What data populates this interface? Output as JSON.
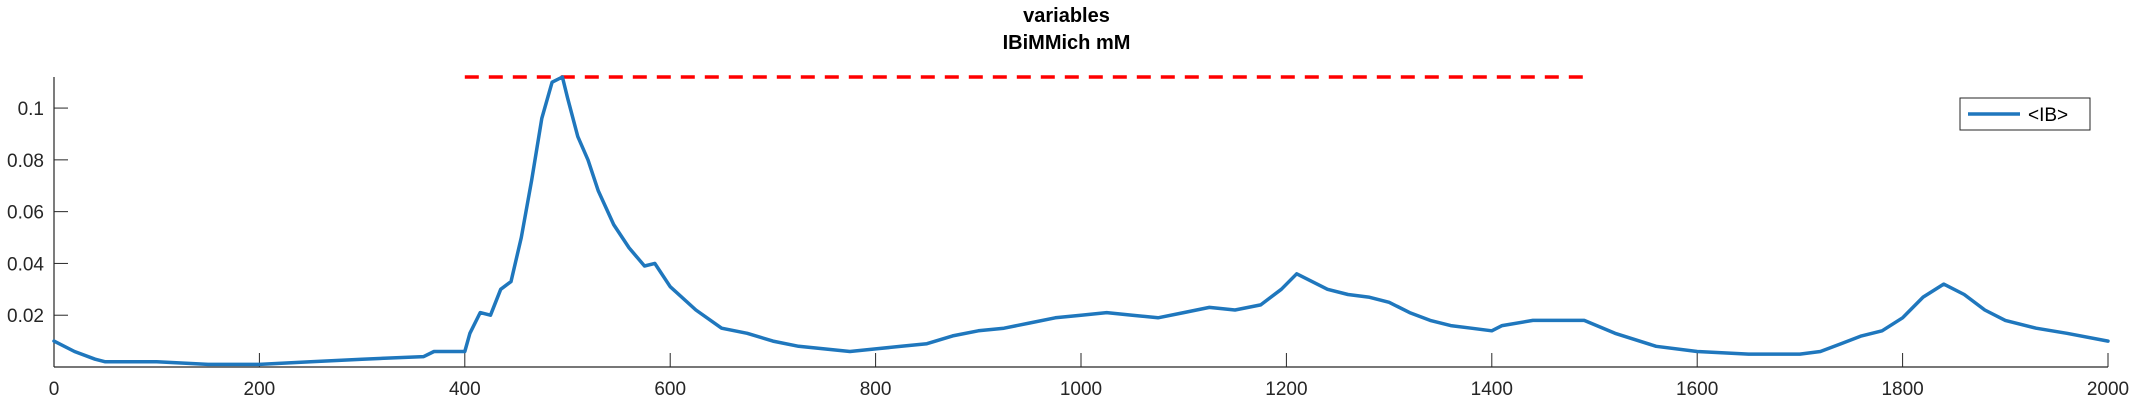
{
  "chart_data": {
    "type": "line",
    "title": [
      "variables",
      "IBiMMich mM"
    ],
    "xlabel": "",
    "ylabel": "",
    "xlim": [
      0,
      2000
    ],
    "ylim": [
      0,
      0.112
    ],
    "xticks": [
      0,
      200,
      400,
      600,
      800,
      1000,
      1200,
      1400,
      1600,
      1800,
      2000
    ],
    "yticks": [
      0.02,
      0.04,
      0.06,
      0.08,
      0.1
    ],
    "ytick_labels": [
      "0.02",
      "0.04",
      "0.06",
      "0.08",
      "0.1"
    ],
    "grid": false,
    "legend": {
      "position": "top-right",
      "entries": [
        "<IB>"
      ]
    },
    "colors": {
      "series": "#1f77bd",
      "reference": "#ff0000",
      "axis": "#262626"
    },
    "reference_line": {
      "style": "dashed",
      "y": 0.112,
      "x_range": [
        400,
        1490
      ]
    },
    "series": [
      {
        "name": "<IB>",
        "x": [
          0,
          20,
          40,
          50,
          100,
          150,
          200,
          250,
          300,
          360,
          370,
          400,
          405,
          415,
          425,
          435,
          445,
          455,
          465,
          475,
          485,
          495,
          500,
          510,
          520,
          530,
          545,
          560,
          575,
          585,
          600,
          625,
          650,
          675,
          700,
          725,
          750,
          775,
          800,
          825,
          850,
          875,
          900,
          925,
          950,
          975,
          1000,
          1025,
          1050,
          1075,
          1100,
          1125,
          1150,
          1175,
          1195,
          1210,
          1240,
          1260,
          1280,
          1300,
          1320,
          1340,
          1360,
          1380,
          1400,
          1410,
          1440,
          1470,
          1490,
          1520,
          1560,
          1600,
          1650,
          1700,
          1720,
          1740,
          1760,
          1780,
          1800,
          1820,
          1840,
          1860,
          1880,
          1900,
          1930,
          1960,
          2000
        ],
        "y": [
          0.01,
          0.006,
          0.003,
          0.002,
          0.002,
          0.001,
          0.001,
          0.002,
          0.003,
          0.004,
          0.006,
          0.006,
          0.013,
          0.021,
          0.02,
          0.03,
          0.033,
          0.05,
          0.072,
          0.096,
          0.11,
          0.112,
          0.104,
          0.089,
          0.08,
          0.068,
          0.055,
          0.046,
          0.039,
          0.04,
          0.031,
          0.022,
          0.015,
          0.013,
          0.01,
          0.008,
          0.007,
          0.006,
          0.007,
          0.008,
          0.009,
          0.012,
          0.014,
          0.015,
          0.017,
          0.019,
          0.02,
          0.021,
          0.02,
          0.019,
          0.021,
          0.023,
          0.022,
          0.024,
          0.03,
          0.036,
          0.03,
          0.028,
          0.027,
          0.025,
          0.021,
          0.018,
          0.016,
          0.015,
          0.014,
          0.016,
          0.018,
          0.018,
          0.018,
          0.013,
          0.008,
          0.006,
          0.005,
          0.005,
          0.006,
          0.009,
          0.012,
          0.014,
          0.019,
          0.027,
          0.032,
          0.028,
          0.022,
          0.018,
          0.015,
          0.013,
          0.01
        ]
      }
    ]
  }
}
